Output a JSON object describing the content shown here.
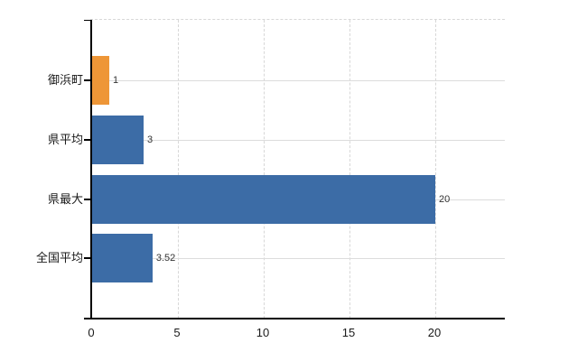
{
  "chart_data": {
    "type": "bar",
    "orientation": "horizontal",
    "title": "",
    "categories": [
      "御浜町",
      "県平均",
      "県最大",
      "全国平均"
    ],
    "values": [
      1,
      3,
      20,
      3.52
    ],
    "value_labels": [
      "1",
      "3",
      "20",
      "3.52"
    ],
    "bar_colors": [
      "#EE9637",
      "#3C6CA6",
      "#3C6CA6",
      "#3C6CA6"
    ],
    "xticks": [
      0,
      5,
      10,
      15,
      20
    ],
    "xtick_labels": [
      "0",
      "5",
      "10",
      "15",
      "20"
    ],
    "xlim": [
      0,
      24.05
    ],
    "grid": {
      "vertical_dashed": true,
      "horizontal_at_category_centers": true,
      "top_border_dashed": true
    },
    "legend": false
  },
  "colors": {
    "highlight_bar": "#EE9637",
    "default_bar": "#3C6CA6",
    "grid_line": "#D7D7D7",
    "axis_line": "#000000",
    "category_text": "#1A1A1A",
    "value_text": "#333333",
    "background": "#FFFFFF"
  }
}
